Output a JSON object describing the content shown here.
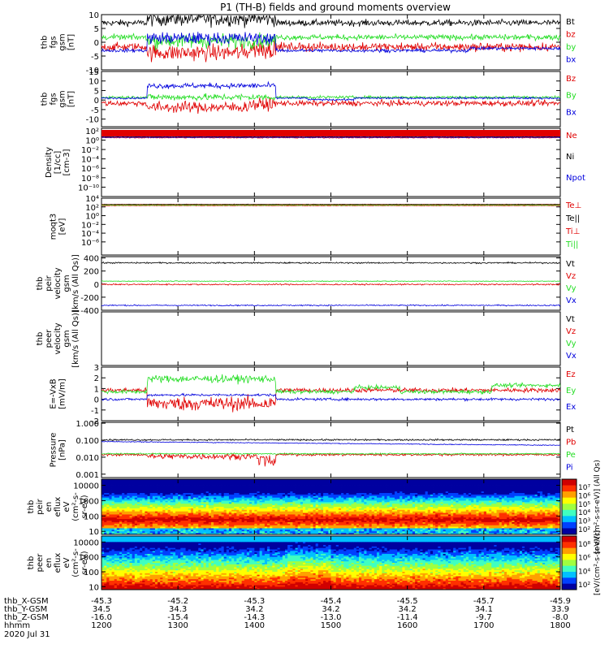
{
  "title": "P1 (TH-B) fields and ground moments overview",
  "colors": {
    "black": "#000000",
    "red": "#e00000",
    "green": "#22dd22",
    "blue": "#0000dd"
  },
  "panels": [
    {
      "id": "fgs",
      "ylabel": [
        "thb",
        "fgs",
        "gsm",
        "[nT]"
      ],
      "ylim": [
        -10,
        10
      ],
      "ticks": [
        10,
        5,
        0,
        -5,
        -10
      ],
      "series": [
        {
          "name": "Bt",
          "color": "black",
          "base": 7,
          "noise": 1.6,
          "pattern": "bt"
        },
        {
          "name": "bz",
          "color": "red",
          "base": -2,
          "noise": 1.8,
          "pattern": "bz"
        },
        {
          "name": "by",
          "color": "green",
          "base": 1,
          "noise": 1.7,
          "pattern": "by"
        },
        {
          "name": "bx",
          "color": "blue",
          "base": -3,
          "noise": 1.3,
          "pattern": "bx"
        }
      ]
    },
    {
      "id": "fgs2",
      "ylabel": [
        "thb",
        "fgs",
        "gsm",
        "[nT]"
      ],
      "ylim": [
        -14,
        15
      ],
      "ticks": [
        15,
        10,
        5,
        0,
        -5,
        -10
      ],
      "series": [
        {
          "name": "Bz",
          "color": "red",
          "base": -2,
          "noise": 1.8,
          "pattern": "bz"
        },
        {
          "name": "By",
          "color": "green",
          "base": 1.5,
          "noise": 1.0,
          "pattern": "by2"
        },
        {
          "name": "Bx",
          "color": "blue",
          "base": 0,
          "noise": 1.0,
          "pattern": "bx2"
        }
      ]
    },
    {
      "id": "dens",
      "ylabel": [
        "Density",
        "[1/cc]",
        "[cm-3]"
      ],
      "ylim": [
        -12,
        2.5
      ],
      "log": true,
      "ticklabels": [
        "10²",
        "10⁰",
        "10⁻²",
        "10⁻⁴",
        "10⁻⁶",
        "10⁻⁸",
        "10⁻¹⁰"
      ],
      "tickvals": [
        2,
        0,
        -2,
        -4,
        -6,
        -8,
        -10
      ],
      "series": [
        {
          "name": "Ne",
          "color": "red",
          "base": 0.5,
          "noise": 0.08,
          "pattern": "flat"
        },
        {
          "name": "Ni",
          "color": "black",
          "base": 0.7,
          "noise": 0.05,
          "pattern": "flat"
        },
        {
          "name": "Npot",
          "color": "blue",
          "base": 0.6,
          "noise": 0.05,
          "pattern": "flat"
        }
      ]
    },
    {
      "id": "temp",
      "ylabel": [
        "moqt3",
        "[eV]"
      ],
      "ylim": [
        -9,
        4
      ],
      "log": true,
      "ticklabels": [
        "10⁴",
        "10²",
        "10⁰",
        "10⁻²",
        "10⁻⁴",
        "10⁻⁶"
      ],
      "tickvals": [
        4,
        2,
        0,
        -2,
        -4,
        -6
      ],
      "series": [
        {
          "name": "Te⊥",
          "color": "red",
          "base": 2.3,
          "noise": 0.05,
          "pattern": "flat"
        },
        {
          "name": "Te||",
          "color": "black",
          "base": 2.6,
          "noise": 0.04,
          "pattern": "flat"
        },
        {
          "name": "Ti⊥",
          "color": "red",
          "base": 2.5,
          "noise": 0.04,
          "pattern": "flat"
        },
        {
          "name": "Ti||",
          "color": "green",
          "base": 2.4,
          "noise": 0.04,
          "pattern": "flat"
        }
      ]
    },
    {
      "id": "vel",
      "ylabel": [
        "thb",
        "peir",
        "velocity",
        "gsm",
        "[km/s (All Qs)]"
      ],
      "ylim": [
        -400,
        420
      ],
      "ticks": [
        400,
        200,
        0,
        -200,
        -400
      ],
      "series": [
        {
          "name": "Vt",
          "color": "black",
          "base": 325,
          "noise": 9,
          "pattern": "flat"
        },
        {
          "name": "Vz",
          "color": "red",
          "base": -5,
          "noise": 9,
          "pattern": "flat"
        },
        {
          "name": "Vy",
          "color": "green",
          "base": 45,
          "noise": 5,
          "pattern": "flat"
        },
        {
          "name": "Vx",
          "color": "blue",
          "base": -325,
          "noise": 8,
          "pattern": "flat"
        }
      ]
    },
    {
      "id": "vele",
      "ylabel": [
        "thb",
        "peer",
        "velocity",
        "gsm",
        "[km/s (All Qs)]"
      ],
      "empty": true,
      "series": [
        {
          "name": "Vt",
          "color": "black"
        },
        {
          "name": "Vz",
          "color": "red"
        },
        {
          "name": "Vy",
          "color": "green"
        },
        {
          "name": "Vx",
          "color": "blue"
        }
      ]
    },
    {
      "id": "efld",
      "ylabel": [
        "E=-VxB",
        "[mV/m]"
      ],
      "ylim": [
        -2,
        3
      ],
      "ticks": [
        3,
        2,
        1,
        0,
        -1,
        -2
      ],
      "series": [
        {
          "name": "Ez",
          "color": "red",
          "base": 0.5,
          "noise": 0.35,
          "pattern": "ez"
        },
        {
          "name": "Ey",
          "color": "green",
          "base": 1.0,
          "noise": 0.3,
          "pattern": "ey"
        },
        {
          "name": "Ex",
          "color": "blue",
          "base": 0.1,
          "noise": 0.1,
          "pattern": "ex"
        }
      ]
    },
    {
      "id": "press",
      "ylabel": [
        "Pressure",
        "[nPa]"
      ],
      "ylim": [
        -3.2,
        0.05
      ],
      "log": true,
      "ticklabels": [
        "1.000",
        "0.100",
        "0.010",
        "0.001"
      ],
      "tickvals": [
        0,
        -1,
        -2,
        -3
      ],
      "series": [
        {
          "name": "Pt",
          "color": "black",
          "base": -0.98,
          "noise": 0.04,
          "pattern": "flat"
        },
        {
          "name": "Pb",
          "color": "red",
          "base": -1.85,
          "noise": 0.1,
          "pattern": "pb"
        },
        {
          "name": "Pe",
          "color": "green",
          "base": -1.8,
          "noise": 0.03,
          "pattern": "flat"
        },
        {
          "name": "Pi",
          "color": "blue",
          "base": -1.08,
          "noise": 0.02,
          "pattern": "pi"
        }
      ]
    },
    {
      "id": "ispec",
      "ylabel": [
        "thb",
        "peir",
        "en",
        "eflux",
        "eV",
        "(cm²-s-",
        "sr-eV)"
      ],
      "spectro": "ion",
      "ticklabels": [
        "10000",
        "1000",
        "100",
        "10"
      ],
      "tickvals": [
        4,
        3,
        2,
        1
      ],
      "ylim": [
        0.8,
        4.4
      ],
      "cbar_ticks": [
        "10⁷",
        "10⁶",
        "10⁵",
        "10⁴",
        "10³",
        "10²"
      ],
      "cbar_label": "[eV/(cm²-s-sr-eV)] (All Qs)"
    },
    {
      "id": "espec",
      "ylabel": [
        "thb",
        "peer",
        "en",
        "eflux",
        "eV",
        "(cm²-s-",
        "sr-eV)"
      ],
      "spectro": "elec",
      "ticklabels": [
        "10000",
        "1000",
        "100",
        "10"
      ],
      "tickvals": [
        4,
        3,
        2,
        1
      ],
      "ylim": [
        0.8,
        4.4
      ],
      "cbar_ticks": [
        "10⁸",
        "10⁶",
        "10⁴",
        "10²"
      ],
      "cbar_label": "[eV/(cm²-s-sr-eV)]"
    }
  ],
  "xaxis": {
    "rows": [
      {
        "label": "thb_X-GSM",
        "values": [
          "-45.3",
          "-45.2",
          "-45.3",
          "-45.4",
          "-45.5",
          "-45.7",
          "-45.9"
        ]
      },
      {
        "label": "thb_Y-GSM",
        "values": [
          "34.5",
          "34.3",
          "34.2",
          "34.2",
          "34.2",
          "34.1",
          "33.9"
        ]
      },
      {
        "label": "thb_Z-GSM",
        "values": [
          "-16.0",
          "-15.4",
          "-14.3",
          "-13.0",
          "-11.4",
          "-9.7",
          "-8.0"
        ]
      },
      {
        "label": "hhmm",
        "values": [
          "1200",
          "1300",
          "1400",
          "1500",
          "1600",
          "1700",
          "1800"
        ]
      }
    ],
    "date": "2020 Jul 31"
  }
}
